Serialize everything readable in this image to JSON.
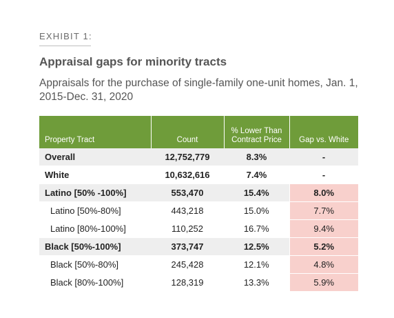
{
  "exhibit_label": "EXHIBIT 1:",
  "title": "Appraisal gaps for minority tracts",
  "subtitle": "Appraisals for the purchase of single-family one-unit homes, Jan. 1, 2015-Dec. 31, 2020",
  "colors": {
    "header_bg": "#6f9c3a",
    "shaded_row": "#eeeeee",
    "gap_highlight": "#f8d0cc"
  },
  "chart_data": {
    "type": "table",
    "columns": [
      "Property Tract",
      "Count",
      "% Lower Than Contract Price",
      "Gap vs. White"
    ],
    "column_lines": [
      [
        "Property Tract"
      ],
      [
        "Count"
      ],
      [
        "% Lower Than",
        "Contract Price"
      ],
      [
        "Gap vs. White"
      ]
    ],
    "rows": [
      {
        "tract": "Overall",
        "count": "12,752,779",
        "pct_lower": "8.3%",
        "gap": "-",
        "shaded": true,
        "bold": true,
        "sub": false,
        "highlight": false
      },
      {
        "tract": "White",
        "count": "10,632,616",
        "pct_lower": "7.4%",
        "gap": "-",
        "shaded": false,
        "bold": true,
        "sub": false,
        "highlight": false
      },
      {
        "tract": "Latino [50% -100%]",
        "count": "553,470",
        "pct_lower": "15.4%",
        "gap": "8.0%",
        "shaded": true,
        "bold": true,
        "sub": false,
        "highlight": true
      },
      {
        "tract": "Latino [50%-80%]",
        "count": "443,218",
        "pct_lower": "15.0%",
        "gap": "7.7%",
        "shaded": false,
        "bold": false,
        "sub": true,
        "highlight": true
      },
      {
        "tract": "Latino [80%-100%]",
        "count": "110,252",
        "pct_lower": "16.7%",
        "gap": "9.4%",
        "shaded": false,
        "bold": false,
        "sub": true,
        "highlight": true
      },
      {
        "tract": "Black [50%-100%]",
        "count": "373,747",
        "pct_lower": "12.5%",
        "gap": "5.2%",
        "shaded": true,
        "bold": true,
        "sub": false,
        "highlight": true
      },
      {
        "tract": "Black [50%-80%]",
        "count": "245,428",
        "pct_lower": "12.1%",
        "gap": "4.8%",
        "shaded": false,
        "bold": false,
        "sub": true,
        "highlight": true
      },
      {
        "tract": "Black [80%-100%]",
        "count": "128,319",
        "pct_lower": "13.3%",
        "gap": "5.9%",
        "shaded": false,
        "bold": false,
        "sub": true,
        "highlight": true
      }
    ]
  }
}
